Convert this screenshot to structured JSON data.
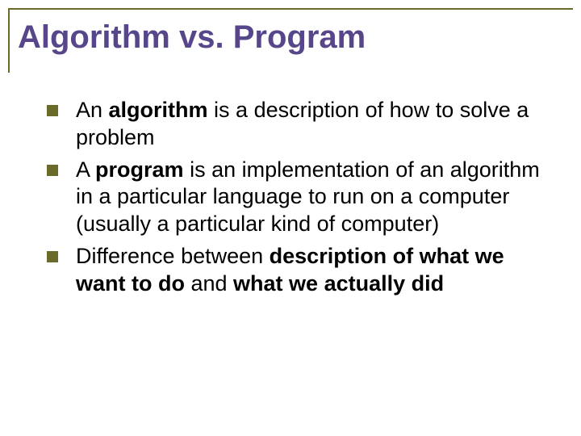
{
  "slide": {
    "title": "Algorithm vs. Program",
    "title_color": "#58468b",
    "accent_color": "#6a6a2a",
    "background_color": "#ffffff",
    "text_color": "#000000",
    "title_fontsize": 40,
    "body_fontsize": 27,
    "bullets": [
      {
        "runs": [
          {
            "text": "An ",
            "bold": false
          },
          {
            "text": "algorithm",
            "bold": true
          },
          {
            "text": " is a description of how to solve a problem",
            "bold": false
          }
        ]
      },
      {
        "runs": [
          {
            "text": "A ",
            "bold": false
          },
          {
            "text": "program",
            "bold": true
          },
          {
            "text": " is an implementation of an algorithm in a particular language to run on a computer (usually a particular kind of computer)",
            "bold": false
          }
        ]
      },
      {
        "runs": [
          {
            "text": "Difference between ",
            "bold": false
          },
          {
            "text": "description of what we want to do",
            "bold": true
          },
          {
            "text": " and ",
            "bold": false
          },
          {
            "text": "what we actually did",
            "bold": true
          }
        ]
      }
    ]
  }
}
